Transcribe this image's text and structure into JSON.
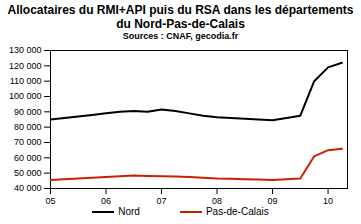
{
  "chart_data": {
    "type": "line",
    "title": "Allocataires du RMI+API puis du RSA dans les départements du Nord-Pas-de-Calais",
    "subtitle": "Sources : CNAF, gecodia.fr",
    "x": [
      2005.0,
      2005.25,
      2005.5,
      2005.75,
      2006.0,
      2006.25,
      2006.5,
      2006.75,
      2007.0,
      2007.25,
      2007.5,
      2007.75,
      2008.0,
      2008.25,
      2008.5,
      2008.75,
      2009.0,
      2009.25,
      2009.5,
      2009.75,
      2010.0,
      2010.25
    ],
    "series": [
      {
        "name": "Nord",
        "color": "#000000",
        "values": [
          85000,
          86000,
          87000,
          88000,
          89000,
          90000,
          90500,
          90000,
          91500,
          90500,
          89000,
          87500,
          86500,
          86000,
          85500,
          85000,
          84500,
          86000,
          87500,
          110000,
          119000,
          122000
        ]
      },
      {
        "name": "Pas-de-Calais",
        "color": "#cc1f00",
        "values": [
          45500,
          46000,
          46500,
          47000,
          47500,
          48000,
          48500,
          48200,
          48000,
          47800,
          47500,
          47000,
          46500,
          46300,
          46000,
          45800,
          45600,
          46000,
          46500,
          61000,
          65000,
          66000
        ]
      }
    ],
    "xlim": [
      2005,
      2010.35
    ],
    "xticks": [
      {
        "value": 2005,
        "label": "05"
      },
      {
        "value": 2006,
        "label": "06"
      },
      {
        "value": 2007,
        "label": "07"
      },
      {
        "value": 2008,
        "label": "08"
      },
      {
        "value": 2009,
        "label": "09"
      },
      {
        "value": 2010,
        "label": "10"
      }
    ],
    "ylim": [
      40000,
      130000
    ],
    "yticks": [
      {
        "value": 40000,
        "label": "40 000"
      },
      {
        "value": 50000,
        "label": "50 000"
      },
      {
        "value": 60000,
        "label": "60 000"
      },
      {
        "value": 70000,
        "label": "70 000"
      },
      {
        "value": 80000,
        "label": "80 000"
      },
      {
        "value": 90000,
        "label": "90 000"
      },
      {
        "value": 100000,
        "label": "100 000"
      },
      {
        "value": 110000,
        "label": "110 000"
      },
      {
        "value": 120000,
        "label": "120 000"
      },
      {
        "value": 130000,
        "label": "130 000"
      }
    ],
    "grid": false,
    "legend": "bottom"
  }
}
